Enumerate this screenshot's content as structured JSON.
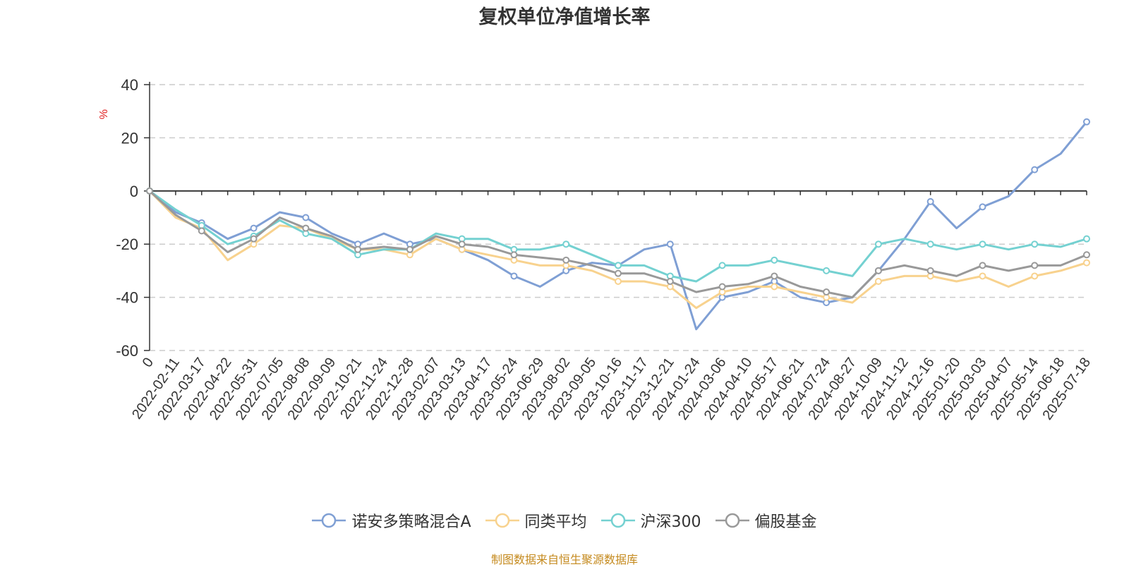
{
  "title": "复权单位净值增长率",
  "source_note": "制图数据来自恒生聚源数据库",
  "chart_data": {
    "type": "line",
    "title": "复权单位净值增长率",
    "ylabel": "%",
    "ylim": [
      -60,
      40
    ],
    "yticks": [
      40,
      20,
      0,
      -20,
      -40,
      -60
    ],
    "grid": true,
    "legend_position": "bottom",
    "x_origin_label": "0",
    "categories": [
      "2022-02-11",
      "2022-03-17",
      "2022-04-22",
      "2022-05-31",
      "2022-07-05",
      "2022-08-08",
      "2022-09-09",
      "2022-10-21",
      "2022-11-24",
      "2022-12-28",
      "2023-02-07",
      "2023-03-13",
      "2023-04-17",
      "2023-05-24",
      "2023-06-29",
      "2023-08-02",
      "2023-09-05",
      "2023-10-16",
      "2023-11-17",
      "2023-12-21",
      "2024-01-24",
      "2024-03-06",
      "2024-04-10",
      "2024-05-17",
      "2024-06-21",
      "2024-07-24",
      "2024-08-27",
      "2024-10-09",
      "2024-11-12",
      "2024-12-16",
      "2025-01-20",
      "2025-03-03",
      "2025-04-07",
      "2025-05-14",
      "2025-06-18",
      "2025-07-18"
    ],
    "series": [
      {
        "name": "诺安多策略混合A",
        "color": "#7f9fd4",
        "values": [
          -8,
          -12,
          -18,
          -14,
          -8,
          -10,
          -16,
          -20,
          -16,
          -20,
          -18,
          -22,
          -26,
          -32,
          -36,
          -30,
          -27,
          -28,
          -22,
          -20,
          -52,
          -40,
          -38,
          -34,
          -40,
          -42,
          -40,
          -30,
          -18,
          -4,
          -14,
          -6,
          -2,
          8,
          14,
          26
        ]
      },
      {
        "name": "同类平均",
        "color": "#f8d28e",
        "values": [
          -10,
          -14,
          -26,
          -20,
          -13,
          -14,
          -18,
          -22,
          -22,
          -24,
          -18,
          -22,
          -24,
          -26,
          -28,
          -28,
          -30,
          -34,
          -34,
          -36,
          -44,
          -38,
          -36,
          -36,
          -38,
          -40,
          -42,
          -34,
          -32,
          -32,
          -34,
          -32,
          -36,
          -32,
          -30,
          -27
        ]
      },
      {
        "name": "沪深300",
        "color": "#74d1d1",
        "values": [
          -7,
          -13,
          -20,
          -17,
          -11,
          -16,
          -18,
          -24,
          -22,
          -22,
          -16,
          -18,
          -18,
          -22,
          -22,
          -20,
          -24,
          -28,
          -28,
          -32,
          -34,
          -28,
          -28,
          -26,
          -28,
          -30,
          -32,
          -20,
          -18,
          -20,
          -22,
          -20,
          -22,
          -20,
          -21,
          -18
        ]
      },
      {
        "name": "偏股基金",
        "color": "#999999",
        "values": [
          -9,
          -15,
          -23,
          -18,
          -10,
          -14,
          -17,
          -22,
          -21,
          -22,
          -17,
          -20,
          -21,
          -24,
          -25,
          -26,
          -28,
          -31,
          -31,
          -34,
          -38,
          -36,
          -35,
          -32,
          -36,
          -38,
          -40,
          -30,
          -28,
          -30,
          -32,
          -28,
          -30,
          -28,
          -28,
          -24
        ]
      }
    ]
  }
}
